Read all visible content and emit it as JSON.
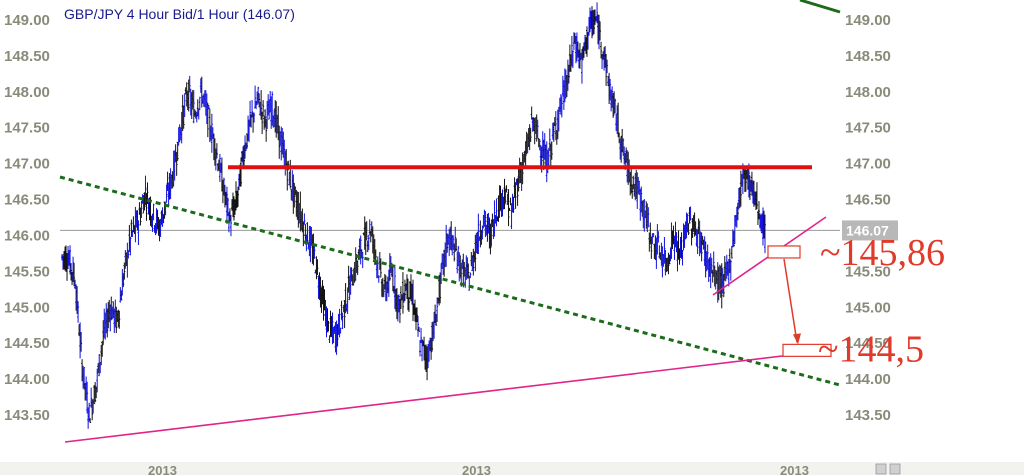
{
  "chart_data": {
    "type": "candlestick",
    "title": "GBP/JPY 4 Hour Bid/1 Hour (146.07)",
    "y_ticks": [
      "149.00",
      "148.50",
      "148.00",
      "147.50",
      "147.00",
      "146.50",
      "146.00",
      "145.50",
      "145.00",
      "144.50",
      "144.00",
      "143.50"
    ],
    "x_labels": [
      "2013",
      "2013",
      "2013"
    ],
    "ylim": [
      143.0,
      149.2
    ],
    "current_price": 146.07,
    "current_price_label": "146.07",
    "series": [
      {
        "values": [
          145.7,
          145.4,
          144.2,
          143.5,
          143.9,
          144.6,
          145.0,
          144.8,
          145.5,
          146.0,
          146.2,
          146.6,
          146.3,
          146.1,
          146.5,
          146.9,
          147.5,
          148.0,
          147.7,
          148.0,
          147.6,
          147.2,
          146.7,
          146.2,
          146.5,
          147.2,
          147.6,
          147.9,
          147.6,
          147.8,
          147.4,
          147.0,
          146.6,
          146.3,
          146.0,
          145.7,
          145.2,
          144.7,
          144.6,
          144.9,
          145.3,
          145.6,
          145.9,
          146.1,
          145.6,
          145.2,
          145.5,
          145.0,
          145.3,
          145.1,
          144.5,
          144.3,
          144.7,
          145.4,
          146.0,
          145.8,
          145.5,
          145.4,
          145.9,
          146.2,
          146.0,
          146.4,
          146.6,
          146.3,
          146.8,
          147.1,
          147.6,
          147.3,
          147.0,
          147.4,
          147.8,
          148.2,
          148.7,
          148.4,
          148.9,
          149.0,
          148.6,
          148.0,
          147.6,
          147.1,
          146.8,
          146.6,
          146.3,
          145.9,
          145.8,
          145.6,
          146.0,
          145.7,
          146.2,
          146.1,
          145.9,
          145.6,
          145.4,
          145.3,
          145.6,
          146.3,
          146.9,
          146.7,
          146.4,
          146.0
        ]
      }
    ],
    "annotations": {
      "resistance_level": 146.95,
      "callouts": [
        "~145,86",
        "~144,5"
      ],
      "target_box_1_price": 145.77,
      "target_box_2_price": 144.4
    },
    "colors": {
      "up": "#1010e0",
      "down": "#101010",
      "resistance": "#e01010",
      "trend_green": "#1a6b1a",
      "trend_pink": "#e0248a",
      "callout": "#e03a2a"
    }
  }
}
